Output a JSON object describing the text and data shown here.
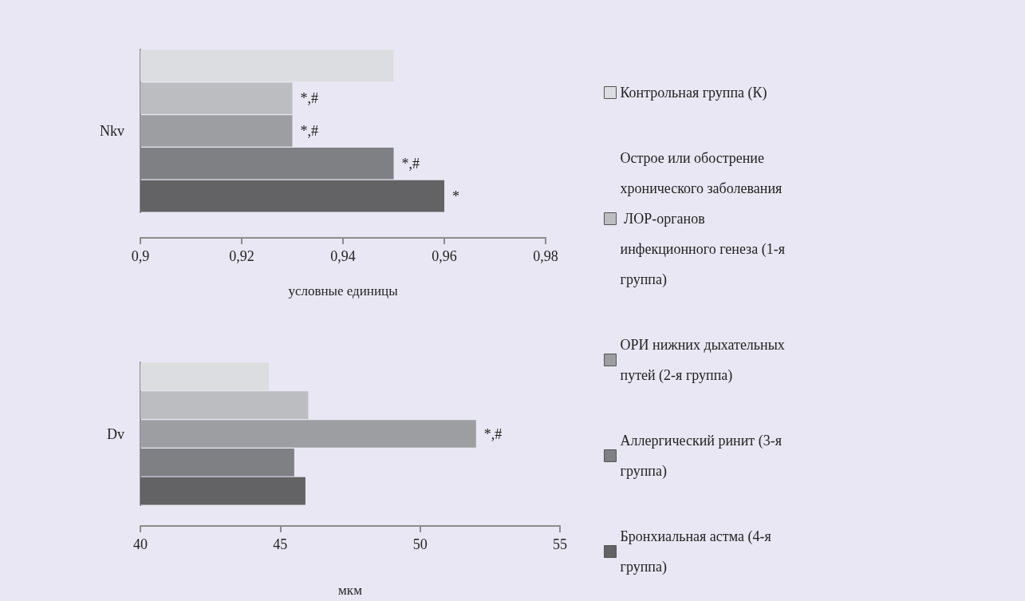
{
  "chart_data": [
    {
      "type": "bar",
      "orientation": "horizontal",
      "stacked": true,
      "categories": [
        null,
        null,
        null,
        null,
        null
      ],
      "ylabel": "Nkv",
      "xlabel": "условные единицы",
      "xlim": [
        0.9,
        0.98
      ],
      "xticks": [
        {
          "value": 0.9,
          "label": "0,9"
        },
        {
          "value": 0.92,
          "label": "0,92"
        },
        {
          "value": 0.94,
          "label": "0,94"
        },
        {
          "value": 0.96,
          "label": "0,96"
        },
        {
          "value": 0.98,
          "label": "0,98"
        }
      ],
      "grid": false,
      "legend": "right",
      "series": [
        {
          "name": "Контрольная группа (К)",
          "color": "#dcdde0",
          "values": [
            0.95,
            null,
            null,
            null,
            null
          ]
        },
        {
          "name": "Острое или обострение хронического заболевания ЛОР-органов инфекционного генеза (1-я группа)",
          "color": "#bcbdc0",
          "values": [
            null,
            0.93,
            null,
            null,
            null
          ],
          "value_labels": [
            null,
            "*,#",
            null,
            null,
            null
          ]
        },
        {
          "name": "ОРИ нижних дыхательных путей (2-я группа)",
          "color": "#9d9ea2",
          "values": [
            null,
            null,
            0.93,
            null,
            null
          ],
          "value_labels": [
            null,
            null,
            "*,#",
            null,
            null
          ]
        },
        {
          "name": "Аллергический ринит (3-я группа)",
          "color": "#7f8084",
          "values": [
            null,
            null,
            null,
            0.95,
            null
          ],
          "value_labels": [
            null,
            null,
            null,
            "*,#",
            null
          ]
        },
        {
          "name": "Бронхиальная астма (4-я группа)",
          "color": "#636365",
          "values": [
            null,
            null,
            null,
            null,
            0.96
          ],
          "value_labels": [
            null,
            null,
            null,
            null,
            "*"
          ]
        }
      ]
    },
    {
      "type": "bar",
      "orientation": "horizontal",
      "stacked": true,
      "categories": [
        null,
        null,
        null,
        null,
        null
      ],
      "ylabel": "Dv",
      "xlabel": "мкм",
      "xlim": [
        40,
        55
      ],
      "xticks": [
        40,
        45,
        50,
        55
      ],
      "grid": false,
      "legend": false,
      "series": [
        {
          "color": "#dcdde0",
          "values": [
            44.6,
            null,
            null,
            null,
            null
          ]
        },
        {
          "color": "#bcbdc0",
          "values": [
            null,
            46.0,
            null,
            null,
            null
          ]
        },
        {
          "color": "#9d9ea2",
          "values": [
            null,
            null,
            52.0,
            null,
            null
          ],
          "value_labels": [
            null,
            null,
            "*,#",
            null,
            null
          ]
        },
        {
          "color": "#7f8084",
          "values": [
            null,
            null,
            null,
            45.5,
            null
          ]
        },
        {
          "color": "#636365",
          "values": [
            null,
            null,
            null,
            null,
            45.9
          ]
        }
      ]
    }
  ]
}
